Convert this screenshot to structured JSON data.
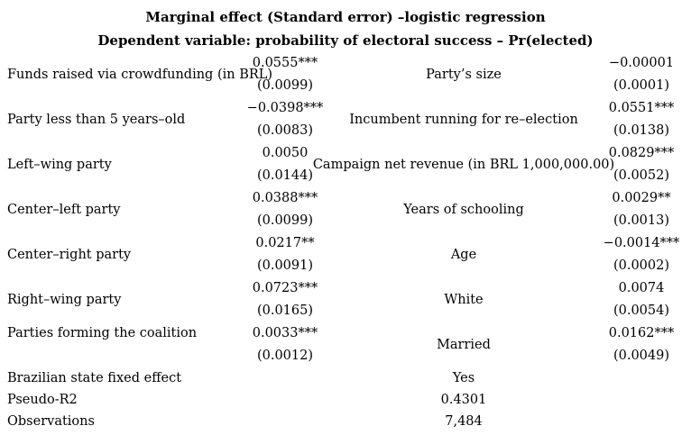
{
  "header": {
    "title": "Marginal effect (Standard error) –logistic regression",
    "subtitle": "Dependent variable: probability of electoral success – Pr(elected)"
  },
  "table": {
    "rows": [
      {
        "left_label": "Funds raised via crowdfunding (in BRL)",
        "left_coef": "0.0555***",
        "left_se": "(0.0099)",
        "right_label": "Party’s size",
        "right_coef": "−0.00001",
        "right_se": "(0.0001)"
      },
      {
        "left_label": "Party less than 5 years–old",
        "left_coef": "−0.0398***",
        "left_se": "(0.0083)",
        "right_label": "Incumbent running for re–election",
        "right_coef": "0.0551***",
        "right_se": "(0.0138)"
      },
      {
        "left_label": "Left–wing party",
        "left_coef": "0.0050",
        "left_se": "(0.0144)",
        "right_label": "Campaign net revenue (in BRL 1,000,000.00)",
        "right_coef": "0.0829***",
        "right_se": "(0.0052)"
      },
      {
        "left_label": "Center–left party",
        "left_coef": "0.0388***",
        "left_se": "(0.0099)",
        "right_label": "Years of schooling",
        "right_coef": "0.0029**",
        "right_se": "(0.0013)"
      },
      {
        "left_label": "Center–right party",
        "left_coef": "0.0217**",
        "left_se": "(0.0091)",
        "right_label": "Age",
        "right_coef": "−0.0014***",
        "right_se": "(0.0002)"
      },
      {
        "left_label": "Right–wing party",
        "left_coef": "0.0723***",
        "left_se": "(0.0165)",
        "right_label": "White",
        "right_coef": "0.0074",
        "right_se": "(0.0054)"
      },
      {
        "left_label": "Parties forming the coalition",
        "left_coef": "0.0033***",
        "left_se": "(0.0012)",
        "right_label": "Married",
        "right_coef": "0.0162***",
        "right_se": "(0.0049)"
      }
    ],
    "summary_rows": [
      {
        "label": "Brazilian state fixed effect",
        "value": "Yes"
      },
      {
        "label": "Pseudo-R2",
        "value": "0.4301"
      },
      {
        "label": "Observations",
        "value": "7,484"
      }
    ]
  },
  "colors": {
    "text": "#000000",
    "background": "#ffffff"
  }
}
